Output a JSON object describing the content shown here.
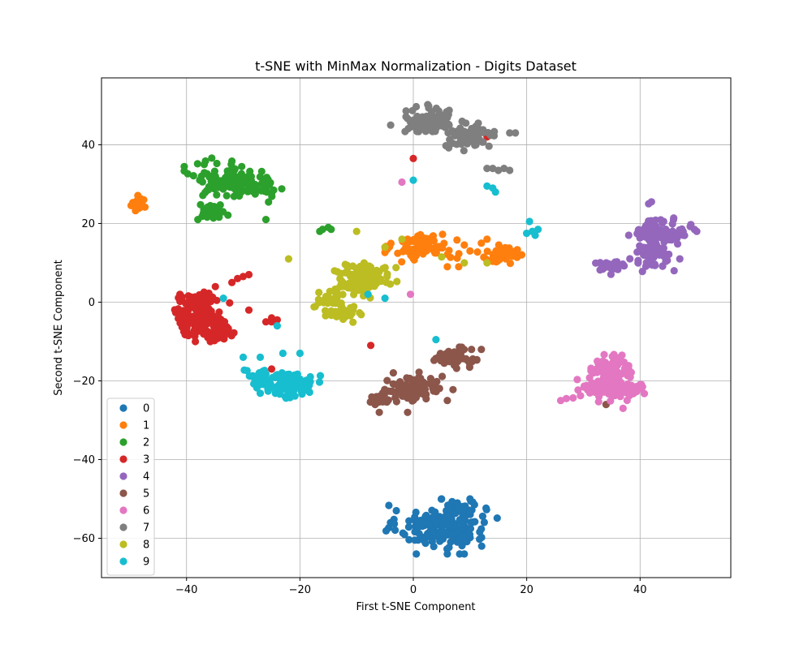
{
  "chart_data": {
    "type": "scatter",
    "title": "t-SNE with MinMax Normalization - Digits Dataset",
    "xlabel": "First t-SNE Component",
    "ylabel": "Second t-SNE Component",
    "xlim": [
      -55,
      56
    ],
    "ylim": [
      -70,
      57
    ],
    "xticks": [
      -40,
      -20,
      0,
      20,
      40
    ],
    "xtick_labels": [
      "−40",
      "−20",
      "0",
      "20",
      "40"
    ],
    "yticks": [
      -60,
      -40,
      -20,
      0,
      20,
      40
    ],
    "ytick_labels": [
      "−60",
      "−40",
      "−20",
      "0",
      "20",
      "40"
    ],
    "grid": true,
    "legend_position": "lower-left",
    "series": [
      {
        "name": "0",
        "color": "#1f77b4",
        "clusters": [
          {
            "cx": 5,
            "cy": -57,
            "rx": 7,
            "ry": 5,
            "n": 170
          },
          {
            "cx": 8,
            "cy": -52,
            "rx": 3,
            "ry": 2,
            "n": 25
          }
        ],
        "points": [
          [
            6,
            -64
          ],
          [
            9,
            -64
          ],
          [
            -3,
            -53
          ],
          [
            10,
            -50
          ]
        ]
      },
      {
        "name": "1",
        "color": "#ff7f0e",
        "clusters": [
          {
            "cx": -48.5,
            "cy": 25,
            "rx": 1.2,
            "ry": 1.5,
            "n": 30
          },
          {
            "cx": 2,
            "cy": 14,
            "rx": 5,
            "ry": 3,
            "n": 90
          },
          {
            "cx": 16,
            "cy": 12,
            "rx": 3.5,
            "ry": 1.8,
            "n": 50
          }
        ],
        "points": [
          [
            -1,
            16
          ],
          [
            8,
            9
          ],
          [
            12,
            15
          ],
          [
            13,
            16
          ],
          [
            10,
            13
          ],
          [
            6,
            9
          ]
        ]
      },
      {
        "name": "2",
        "color": "#2ca02c",
        "clusters": [
          {
            "cx": -32,
            "cy": 31,
            "rx": 6,
            "ry": 4,
            "n": 120
          },
          {
            "cx": -35.5,
            "cy": 23,
            "rx": 2,
            "ry": 1.8,
            "n": 30
          },
          {
            "cx": -26,
            "cy": 29,
            "rx": 2,
            "ry": 3,
            "n": 25
          }
        ],
        "points": [
          [
            -16,
            18.5
          ],
          [
            -15,
            19
          ],
          [
            -16.5,
            18
          ],
          [
            -14.5,
            18.5
          ],
          [
            -26,
            21
          ],
          [
            -38,
            21
          ]
        ]
      },
      {
        "name": "3",
        "color": "#d62728",
        "clusters": [
          {
            "cx": -38,
            "cy": -3,
            "rx": 4,
            "ry": 5,
            "n": 140
          },
          {
            "cx": -34,
            "cy": -8,
            "rx": 2.5,
            "ry": 2,
            "n": 25
          }
        ],
        "points": [
          [
            -31,
            6
          ],
          [
            -30,
            6.5
          ],
          [
            -29,
            7
          ],
          [
            -32,
            5
          ],
          [
            -25,
            -4
          ],
          [
            -25,
            -5
          ],
          [
            -24,
            -4.5
          ],
          [
            -26,
            -5
          ],
          [
            -29,
            -2
          ],
          [
            -7.5,
            -11
          ],
          [
            0,
            36.5
          ],
          [
            13,
            42
          ],
          [
            -25,
            -17
          ]
        ]
      },
      {
        "name": "4",
        "color": "#9467bd",
        "clusters": [
          {
            "cx": 44,
            "cy": 18,
            "rx": 4,
            "ry": 3,
            "n": 90
          },
          {
            "cx": 42,
            "cy": 12,
            "rx": 3,
            "ry": 3,
            "n": 50
          },
          {
            "cx": 35,
            "cy": 9,
            "rx": 2.5,
            "ry": 1.5,
            "n": 30
          }
        ],
        "points": [
          [
            41.5,
            25
          ],
          [
            42,
            25.5
          ],
          [
            50,
            18
          ],
          [
            47,
            11
          ],
          [
            38,
            17
          ],
          [
            46,
            8
          ]
        ]
      },
      {
        "name": "5",
        "color": "#8c564b",
        "clusters": [
          {
            "cx": 0,
            "cy": -22,
            "rx": 5,
            "ry": 3,
            "n": 90
          },
          {
            "cx": 7,
            "cy": -14,
            "rx": 3,
            "ry": 2,
            "n": 50
          },
          {
            "cx": -6,
            "cy": -25,
            "rx": 2,
            "ry": 1.5,
            "n": 20
          }
        ],
        "points": [
          [
            -6,
            -28
          ],
          [
            -1,
            -28
          ],
          [
            6,
            -25
          ],
          [
            12,
            -12
          ],
          [
            34,
            -26
          ]
        ]
      },
      {
        "name": "6",
        "color": "#e377c2",
        "clusters": [
          {
            "cx": 35,
            "cy": -17,
            "rx": 3,
            "ry": 3,
            "n": 70
          },
          {
            "cx": 35,
            "cy": -22,
            "rx": 5,
            "ry": 2.5,
            "n": 90
          }
        ],
        "points": [
          [
            26,
            -25
          ],
          [
            27,
            -24.5
          ],
          [
            -0.5,
            2
          ],
          [
            -2,
            30.5
          ],
          [
            37,
            -27
          ]
        ]
      },
      {
        "name": "7",
        "color": "#7f7f7f",
        "clusters": [
          {
            "cx": 3,
            "cy": 46,
            "rx": 4,
            "ry": 3,
            "n": 90
          },
          {
            "cx": 10,
            "cy": 42,
            "rx": 4,
            "ry": 2.5,
            "n": 70
          }
        ],
        "points": [
          [
            14,
            34
          ],
          [
            15,
            33.5
          ],
          [
            16,
            34
          ],
          [
            17,
            33.5
          ],
          [
            13,
            34
          ],
          [
            17,
            43
          ],
          [
            18,
            43
          ],
          [
            -4,
            45
          ]
        ]
      },
      {
        "name": "8",
        "color": "#bcbd22",
        "clusters": [
          {
            "cx": -9,
            "cy": 6,
            "rx": 4.5,
            "ry": 3.5,
            "n": 120
          },
          {
            "cx": -14,
            "cy": 0,
            "rx": 2.5,
            "ry": 2.5,
            "n": 40
          },
          {
            "cx": -12,
            "cy": -3.5,
            "rx": 2,
            "ry": 1.5,
            "n": 20
          }
        ],
        "points": [
          [
            -22,
            11
          ],
          [
            -2,
            16
          ],
          [
            5,
            11.5
          ],
          [
            9,
            10
          ],
          [
            13,
            10
          ],
          [
            -10,
            18
          ],
          [
            -5,
            14
          ]
        ]
      },
      {
        "name": "9",
        "color": "#17becf",
        "clusters": [
          {
            "cx": -22,
            "cy": -21,
            "rx": 4,
            "ry": 3,
            "n": 110
          },
          {
            "cx": -27,
            "cy": -19,
            "rx": 2,
            "ry": 2,
            "n": 30
          }
        ],
        "points": [
          [
            -20,
            -13
          ],
          [
            -23,
            -13
          ],
          [
            -30,
            -14
          ],
          [
            -27,
            -14
          ],
          [
            -24,
            -6
          ],
          [
            -33.5,
            1
          ],
          [
            4,
            -9.5
          ],
          [
            -8,
            2
          ],
          [
            -5,
            1
          ],
          [
            0,
            31
          ],
          [
            14,
            29
          ],
          [
            14.5,
            28
          ],
          [
            13,
            29.5
          ],
          [
            20.5,
            20.5
          ],
          [
            21,
            18
          ],
          [
            22,
            18.5
          ],
          [
            21.5,
            17
          ],
          [
            20,
            17.5
          ]
        ]
      }
    ]
  }
}
